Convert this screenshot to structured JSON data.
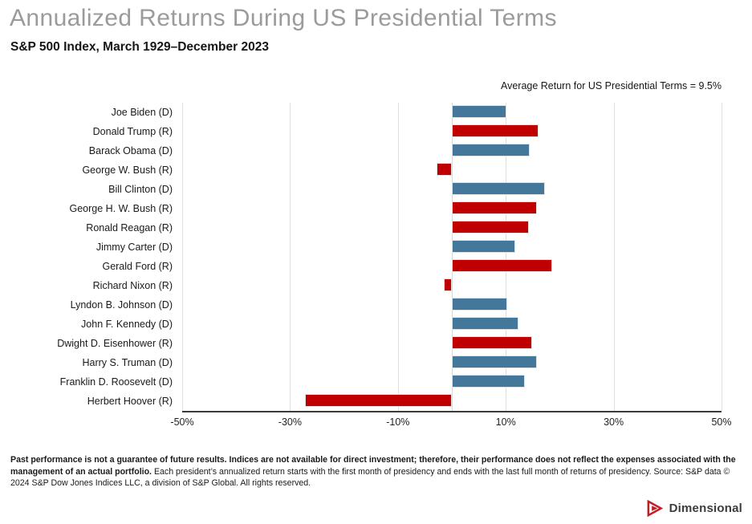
{
  "chart_data": {
    "type": "bar",
    "orientation": "horizontal",
    "title": "Annualized Returns During US Presidential Terms",
    "subtitle": "S&P 500 Index, March 1929–December 2023",
    "annotation": "Average Return for US Presidential Terms = 9.5%",
    "average_return_pct": 9.5,
    "xlabel": "",
    "ylabel": "",
    "xlim": [
      -50,
      50
    ],
    "grid_values": [
      -50,
      -30,
      -10,
      0,
      10,
      30,
      50
    ],
    "xticks": [
      {
        "value": -50,
        "label": "-50%"
      },
      {
        "value": -30,
        "label": "-30%"
      },
      {
        "value": -10,
        "label": "-10%"
      },
      {
        "value": 10,
        "label": "10%"
      },
      {
        "value": 30,
        "label": "30%"
      },
      {
        "value": 50,
        "label": "50%"
      }
    ],
    "bar_colors": {
      "D": "#44789B",
      "R": "#C00000"
    },
    "legend": "none",
    "rows": [
      {
        "label": "Joe Biden (D)",
        "party": "D",
        "value_pct": 10.1
      },
      {
        "label": "Donald Trump (R)",
        "party": "R",
        "value_pct": 16.1
      },
      {
        "label": "Barack Obama (D)",
        "party": "D",
        "value_pct": 14.5
      },
      {
        "label": "George W. Bush (R)",
        "party": "R",
        "value_pct": -2.9
      },
      {
        "label": "Bill Clinton (D)",
        "party": "D",
        "value_pct": 17.3
      },
      {
        "label": "George H. W. Bush (R)",
        "party": "R",
        "value_pct": 15.8
      },
      {
        "label": "Ronald Reagan (R)",
        "party": "R",
        "value_pct": 14.3
      },
      {
        "label": "Jimmy Carter (D)",
        "party": "D",
        "value_pct": 11.7
      },
      {
        "label": "Gerald Ford (R)",
        "party": "R",
        "value_pct": 18.6
      },
      {
        "label": "Richard Nixon (R)",
        "party": "R",
        "value_pct": -1.5
      },
      {
        "label": "Lyndon B. Johnson (D)",
        "party": "D",
        "value_pct": 10.3
      },
      {
        "label": "John F. Kennedy (D)",
        "party": "D",
        "value_pct": 12.4
      },
      {
        "label": "Dwight D. Eisenhower (R)",
        "party": "R",
        "value_pct": 14.9
      },
      {
        "label": "Harry S. Truman (D)",
        "party": "D",
        "value_pct": 15.8
      },
      {
        "label": "Franklin D. Roosevelt (D)",
        "party": "D",
        "value_pct": 13.5
      },
      {
        "label": "Herbert Hoover (R)",
        "party": "R",
        "value_pct": -27.3
      }
    ]
  },
  "footnote": {
    "bold": "Past performance is not a guarantee of future results. Indices are not available for direct investment; therefore, their performance does not reflect the expenses associated with the management of an actual portfolio.",
    "regular": " Each president’s annualized return starts with the first month of presidency and ends with the last full month of returns of presidency. Source: S&P data © 2024 S&P Dow Jones Indices LLC, a division of S&P Global. All rights reserved."
  },
  "logo": {
    "text": "Dimensional",
    "mark_color": "#C41E25"
  }
}
